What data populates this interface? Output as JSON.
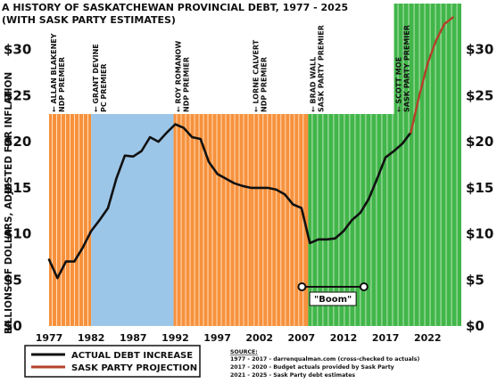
{
  "chart_data": {
    "type": "line",
    "title": "A HISTORY OF SASKATCHEWAN PROVINCIAL DEBT, 1977 - 2025",
    "subtitle": "(WITH SASK PARTY ESTIMATES)",
    "ylabel": "BILLIONS OF DOLLARS, ADJUSTED FOR INFLATION",
    "xlabel": "",
    "xlim": [
      1977,
      2026
    ],
    "ylim": [
      0,
      35
    ],
    "y_ticks": [
      "$0",
      "$5",
      "$10",
      "$15",
      "$20",
      "$25",
      "$30"
    ],
    "y_tick_values": [
      0,
      5,
      10,
      15,
      20,
      25,
      30
    ],
    "x_ticks": [
      "1977",
      "1982",
      "1987",
      "1992",
      "1997",
      "2002",
      "2007",
      "2012",
      "2017",
      "2022"
    ],
    "x_tick_values": [
      1977,
      1982,
      1987,
      1992,
      1997,
      2002,
      2007,
      2012,
      2017,
      2022
    ],
    "periods": [
      {
        "label": "ALLAN BLAKENEY",
        "role": "NDP PREMIER",
        "start": 1977,
        "end": 1982,
        "party": "NDP"
      },
      {
        "label": "GRANT DEVINE",
        "role": "PC PREMIER",
        "start": 1982,
        "end": 1991.8,
        "party": "PC"
      },
      {
        "label": "ROY ROMANOW",
        "role": "NDP PREMIER",
        "start": 1991.8,
        "end": 2001,
        "party": "NDP"
      },
      {
        "label": "LORNE CALVERT",
        "role": "NDP PREMIER",
        "start": 2001,
        "end": 2007.8,
        "party": "NDP"
      },
      {
        "label": "BRAD WALL",
        "role": "SASK PARTY PREMIER",
        "start": 2007.8,
        "end": 2018,
        "party": "SASK"
      },
      {
        "label": "SCOTT MOE",
        "role": "SASK PARTY PREMIER",
        "start": 2018,
        "end": 2026,
        "party": "SASK"
      }
    ],
    "series": [
      {
        "name": "ACTUAL DEBT INCREASE",
        "color": "#111111",
        "x": [
          1977,
          1978,
          1979,
          1980,
          1981,
          1982,
          1983,
          1984,
          1985,
          1986,
          1987,
          1988,
          1989,
          1990,
          1991,
          1992,
          1993,
          1994,
          1995,
          1996,
          1997,
          1998,
          1999,
          2000,
          2001,
          2002,
          2003,
          2004,
          2005,
          2006,
          2007,
          2008,
          2009,
          2010,
          2011,
          2012,
          2013,
          2014,
          2015,
          2016,
          2017,
          2018,
          2019,
          2020
        ],
        "values": [
          7.2,
          5.2,
          7.0,
          7.0,
          8.5,
          10.3,
          11.5,
          12.8,
          16.0,
          18.5,
          18.4,
          19.0,
          20.5,
          20.0,
          21.0,
          21.9,
          21.5,
          20.5,
          20.3,
          17.8,
          16.5,
          16.0,
          15.5,
          15.2,
          15.0,
          15.0,
          15.0,
          14.8,
          14.3,
          13.2,
          12.8,
          9.0,
          9.4,
          9.4,
          9.5,
          10.3,
          11.5,
          12.3,
          13.8,
          16.0,
          18.3,
          19.0,
          19.8,
          21.0
        ]
      },
      {
        "name": "SASK PARTY PROJECTION",
        "color": "#b5402a",
        "x": [
          2020,
          2021,
          2022,
          2023,
          2024,
          2025
        ],
        "values": [
          21.0,
          25.0,
          28.5,
          31.0,
          32.8,
          33.5
        ]
      }
    ],
    "annotation": {
      "text": "\"Boom\"",
      "start": 2007.8,
      "end": 2014
    }
  },
  "legend": {
    "items": [
      {
        "label": "ACTUAL DEBT INCREASE",
        "color": "#111111"
      },
      {
        "label": "SASK PARTY PROJECTION",
        "color": "#b5402a"
      }
    ]
  },
  "source": {
    "heading": "SOURCE:",
    "lines": [
      "1977 - 2017 - darrenqualman.com (cross-checked to actuals)",
      "2017 - 2020 - Budget actuals provided by Sask Party",
      "2021 - 2025 - Sask Party debt estimates"
    ]
  },
  "colors": {
    "ndp": "#f7913c",
    "pc": "#9cc6e8",
    "sask": "#41b649",
    "stripe_ndp": "#ffe6cc",
    "stripe_pc": "#e7f1fa",
    "stripe_sask": "#c9ebc6"
  }
}
